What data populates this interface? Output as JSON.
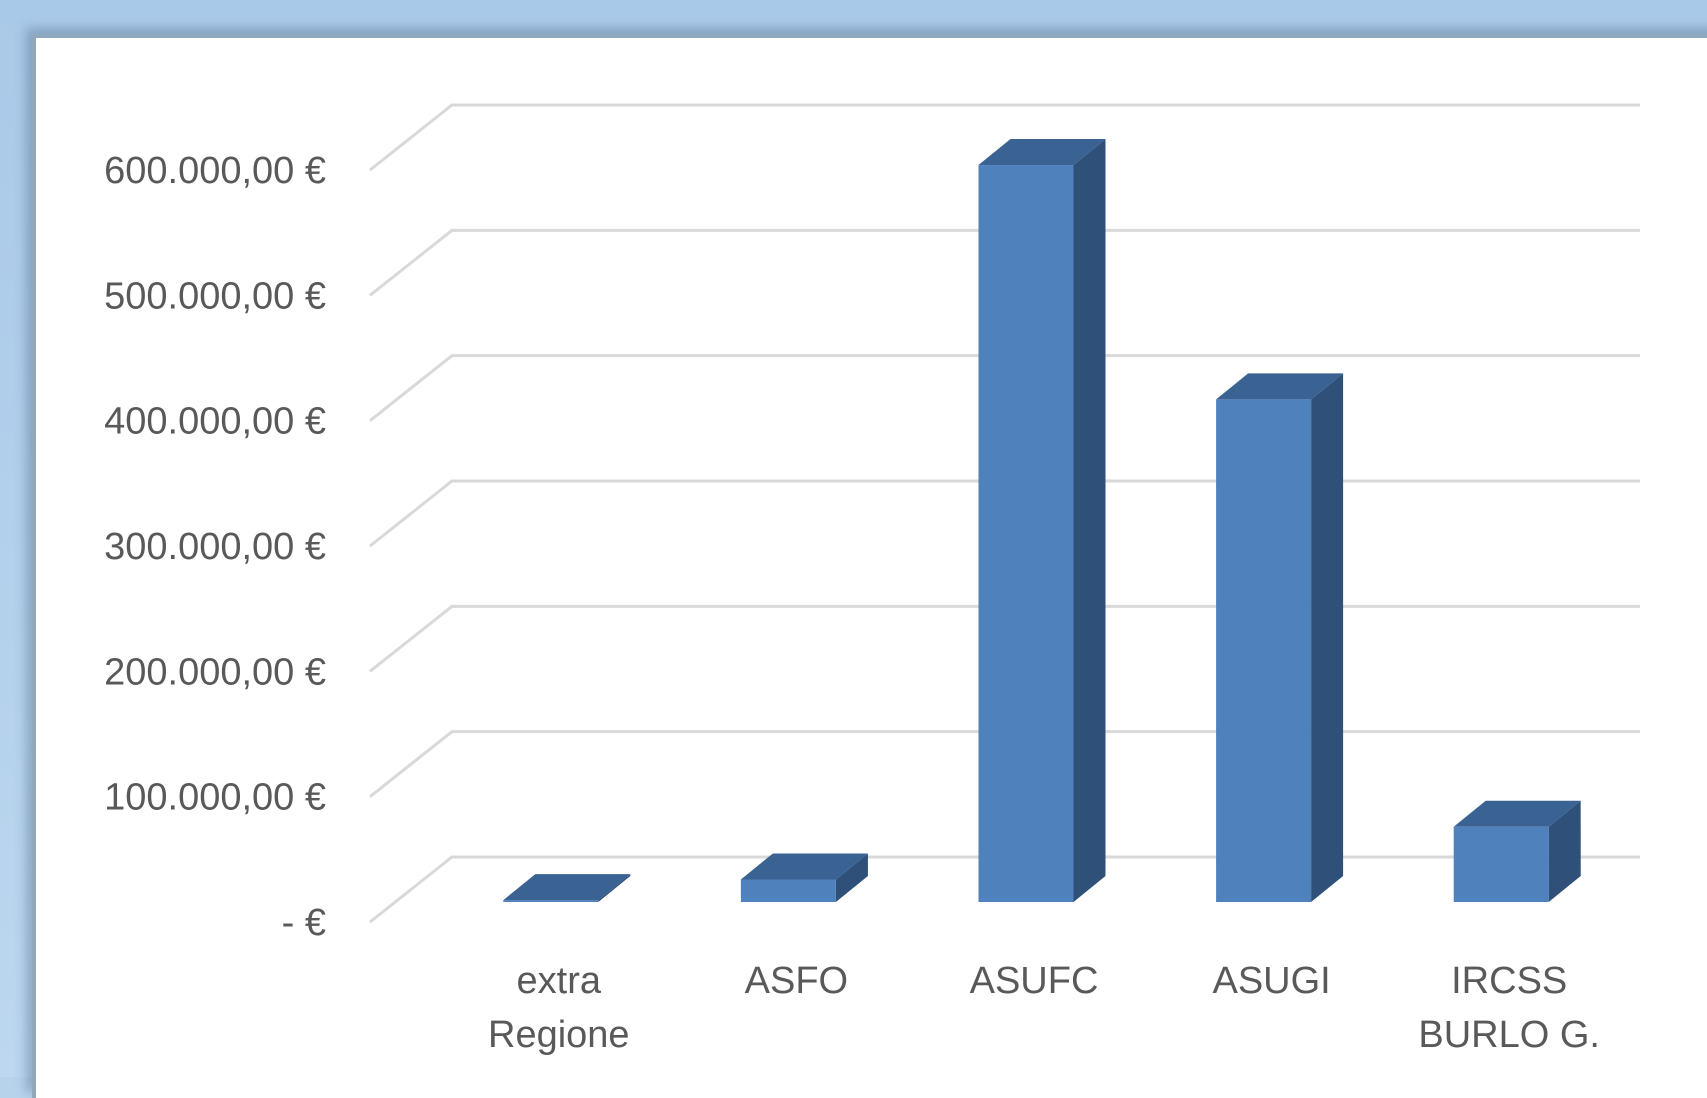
{
  "chart_data": {
    "type": "bar",
    "style": "3d-column",
    "categories": [
      [
        "extra",
        "Regione"
      ],
      [
        "ASFO"
      ],
      [
        "ASUFC"
      ],
      [
        "ASUGI"
      ],
      [
        "IRCSS",
        "BURLO G."
      ]
    ],
    "values": [
      1500,
      18000,
      588000,
      401000,
      60000
    ],
    "yticks": [
      {
        "value": 0,
        "label": "-   €"
      },
      {
        "value": 100000,
        "label": "100.000,00 €"
      },
      {
        "value": 200000,
        "label": "200.000,00 €"
      },
      {
        "value": 300000,
        "label": "300.000,00 €"
      },
      {
        "value": 400000,
        "label": "400.000,00 €"
      },
      {
        "value": 500000,
        "label": "500.000,00 €"
      },
      {
        "value": 600000,
        "label": "600.000,00 €"
      }
    ],
    "ylim": [
      0,
      600000
    ],
    "grid": true,
    "colors": {
      "front": "#4f81bd",
      "side": "#2f5079",
      "top": "#3a6293",
      "grid": "#d9d9d9",
      "text": "#595959"
    }
  }
}
